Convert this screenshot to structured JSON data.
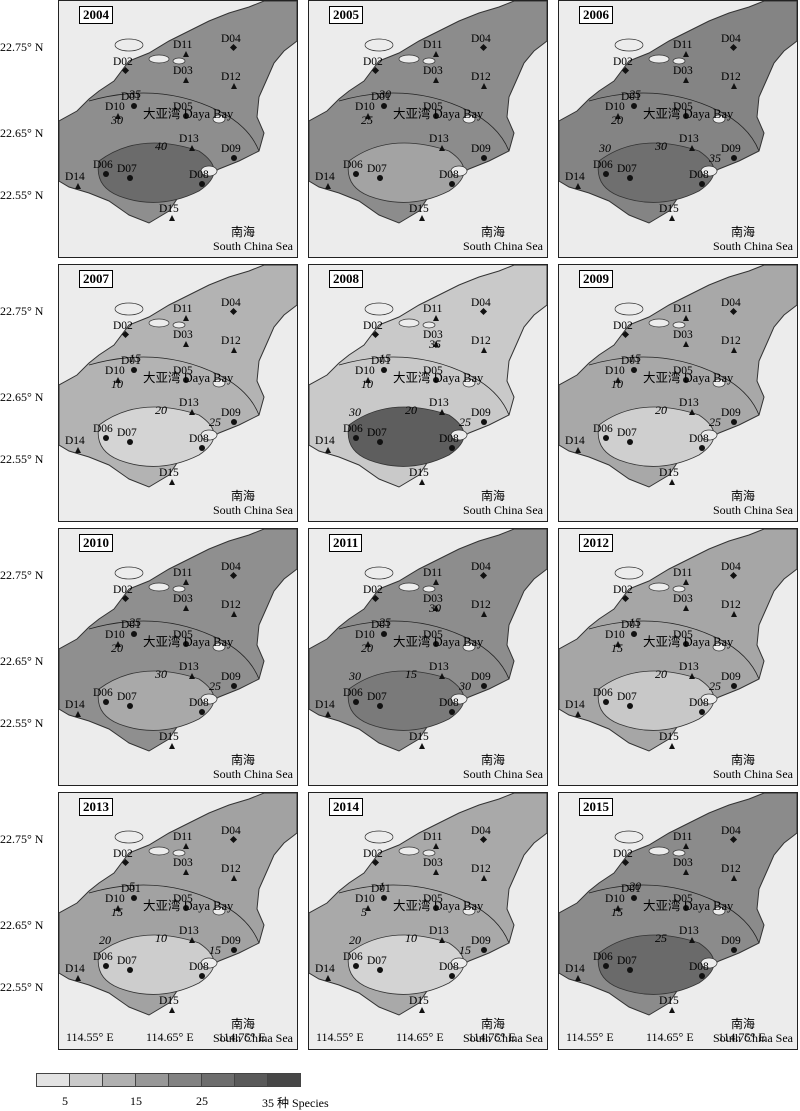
{
  "panels": [
    {
      "year": "2004",
      "fill": "#8e8e8e",
      "fill2": "#6b6b6b",
      "labels": [
        "30",
        "35",
        "40"
      ]
    },
    {
      "year": "2005",
      "fill": "#8c8c8c",
      "fill2": "#a3a3a3",
      "labels": [
        "25",
        "30"
      ]
    },
    {
      "year": "2006",
      "fill": "#848484",
      "fill2": "#6f6f6f",
      "labels": [
        "20",
        "25",
        "30",
        "35",
        "30"
      ]
    },
    {
      "year": "2007",
      "fill": "#b3b3b3",
      "fill2": "#d4d4d4",
      "labels": [
        "10",
        "15",
        "20",
        "25"
      ]
    },
    {
      "year": "2008",
      "fill": "#c9c9c9",
      "fill2": "#5e5e5e",
      "labels": [
        "10",
        "15",
        "20",
        "25",
        "30",
        "35"
      ]
    },
    {
      "year": "2009",
      "fill": "#a8a8a8",
      "fill2": "#cfcfcf",
      "labels": [
        "10",
        "15",
        "20",
        "25"
      ]
    },
    {
      "year": "2010",
      "fill": "#8f8f8f",
      "fill2": "#a9a9a9",
      "labels": [
        "20",
        "25",
        "30",
        "25"
      ]
    },
    {
      "year": "2011",
      "fill": "#8d8d8d",
      "fill2": "#7a7a7a",
      "labels": [
        "20",
        "25",
        "15",
        "30",
        "30",
        "30"
      ]
    },
    {
      "year": "2012",
      "fill": "#a6a6a6",
      "fill2": "#c8c8c8",
      "labels": [
        "15",
        "15",
        "20",
        "25"
      ]
    },
    {
      "year": "2013",
      "fill": "#a2a2a2",
      "fill2": "#cdcdcd",
      "labels": [
        "15",
        "5",
        "10",
        "15",
        "20"
      ]
    },
    {
      "year": "2014",
      "fill": "#a9a9a9",
      "fill2": "#d3d3d3",
      "labels": [
        "5",
        "1",
        "10",
        "15",
        "20"
      ]
    },
    {
      "year": "2015",
      "fill": "#8b8b8b",
      "fill2": "#6a6a6a",
      "labels": [
        "15",
        "20",
        "25"
      ]
    }
  ],
  "stations": [
    {
      "id": "D04",
      "shape": "diamond"
    },
    {
      "id": "D11",
      "shape": "triangle"
    },
    {
      "id": "D02",
      "shape": "diamond"
    },
    {
      "id": "D03",
      "shape": "triangle"
    },
    {
      "id": "D12",
      "shape": "triangle"
    },
    {
      "id": "D01",
      "shape": "dot"
    },
    {
      "id": "D10",
      "shape": "triangle"
    },
    {
      "id": "D05",
      "shape": "dot"
    },
    {
      "id": "D13",
      "shape": "triangle"
    },
    {
      "id": "D09",
      "shape": "dot"
    },
    {
      "id": "D06",
      "shape": "dot"
    },
    {
      "id": "D07",
      "shape": "dot"
    },
    {
      "id": "D14",
      "shape": "triangle"
    },
    {
      "id": "D08",
      "shape": "dot"
    },
    {
      "id": "D15",
      "shape": "triangle"
    }
  ],
  "bay_label": "大亚湾 Daya Bay",
  "sea_label_cn": "南海",
  "sea_label_en": "South China Sea",
  "latitudes": [
    "22.75° N",
    "22.65° N",
    "22.55° N"
  ],
  "longitudes": [
    "114.55° E",
    "114.65° E",
    "114.75° E"
  ],
  "legend": {
    "colors": [
      "#e3e3e3",
      "#cacaca",
      "#b0b0b0",
      "#989898",
      "#828282",
      "#6d6d6d",
      "#5a5a5a",
      "#474747"
    ],
    "ticks": [
      "5",
      "15",
      "25",
      "35 种 Species"
    ]
  }
}
